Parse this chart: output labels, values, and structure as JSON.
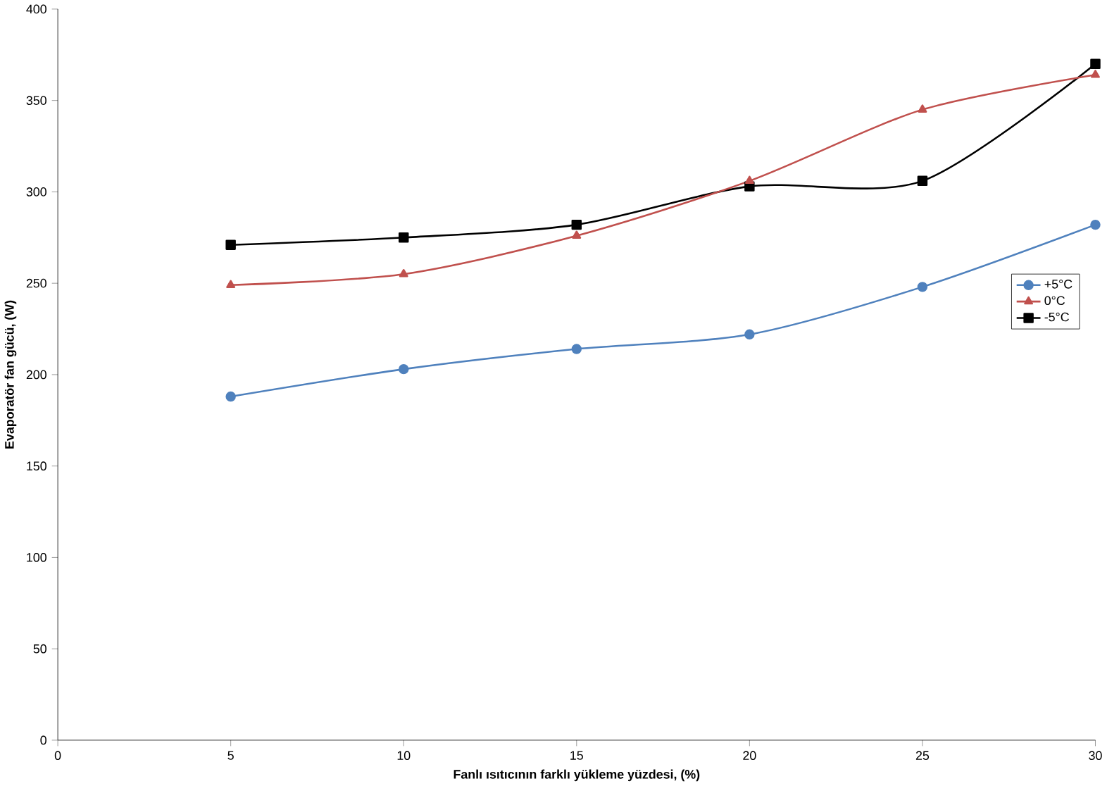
{
  "chart_data": {
    "type": "line",
    "xlabel": "Fanlı ısıtıcının farklı yükleme yüzdesi, (%)",
    "ylabel": "Evaporatör fan gücü, (W)",
    "x": [
      5,
      10,
      15,
      20,
      25,
      30
    ],
    "series": [
      {
        "name": "+5°C",
        "color": "#4f81bd",
        "marker": "circle",
        "values": [
          188,
          203,
          214,
          222,
          248,
          282
        ]
      },
      {
        "name": "0°C",
        "color": "#c0504d",
        "marker": "triangle",
        "values": [
          249,
          255,
          276,
          306,
          345,
          364
        ]
      },
      {
        "name": "-5°C",
        "color": "#000000",
        "marker": "square",
        "values": [
          271,
          275,
          282,
          303,
          306,
          370
        ]
      }
    ],
    "xlim": [
      0,
      30
    ],
    "xticks": [
      0,
      5,
      10,
      15,
      20,
      25,
      30
    ],
    "ylim": [
      0,
      400
    ],
    "yticks": [
      0,
      50,
      100,
      150,
      200,
      250,
      300,
      350,
      400
    ],
    "grid": false,
    "legend": "right",
    "line_style": "solid"
  }
}
